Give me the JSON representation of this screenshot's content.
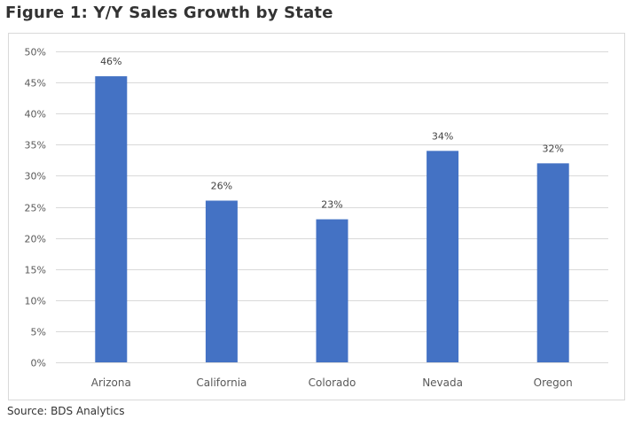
{
  "figure": {
    "title": "Figure 1: Y/Y Sales Growth by State",
    "source": "Source: BDS Analytics"
  },
  "colors": {
    "bar": "#4472c4",
    "grid": "#d9d9d9",
    "axis_text": "#595959",
    "label_text": "#404040"
  },
  "chart_data": {
    "type": "bar",
    "title": "",
    "xlabel": "",
    "ylabel": "",
    "categories": [
      "Arizona",
      "California",
      "Colorado",
      "Nevada",
      "Oregon"
    ],
    "values": [
      46,
      26,
      23,
      34,
      32
    ],
    "data_labels": [
      "46%",
      "26%",
      "23%",
      "34%",
      "32%"
    ],
    "ylim": [
      0,
      50
    ],
    "yticks": [
      0,
      5,
      10,
      15,
      20,
      25,
      30,
      35,
      40,
      45,
      50
    ],
    "ytick_labels": [
      "0%",
      "5%",
      "10%",
      "15%",
      "20%",
      "25%",
      "30%",
      "35%",
      "40%",
      "45%",
      "50%"
    ],
    "grid": true,
    "legend": "none"
  }
}
